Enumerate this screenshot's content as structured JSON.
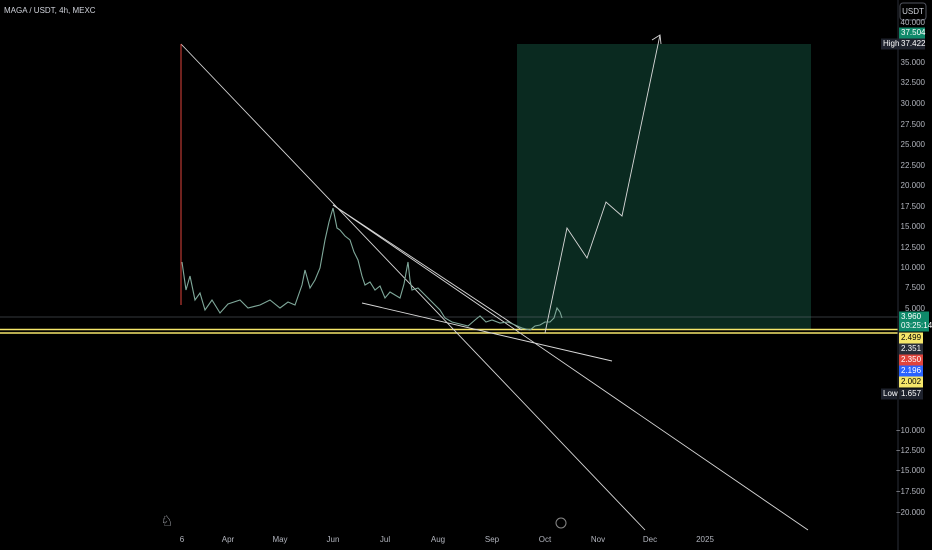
{
  "header": {
    "title": "MAGA / USDT, 4h, MEXC",
    "currency": "USDT"
  },
  "price_axis": {
    "labels": [
      "40.000",
      "35.000",
      "32.500",
      "30.000",
      "27.500",
      "25.000",
      "22.500",
      "20.000",
      "17.500",
      "15.000",
      "12.500",
      "10.000",
      "7.500",
      "5.000",
      "−10.000",
      "−12.500",
      "−15.000",
      "−17.500",
      "−20.000"
    ]
  },
  "badges": {
    "target": "37.504",
    "high_label": "High",
    "high": "37.422",
    "last": "3.960",
    "countdown": "03:25:14",
    "b1": "2.499",
    "b2": "2.351",
    "b3": "2.350",
    "b4": "2.196",
    "b5": "2.002",
    "low_label": "Low",
    "low": "1.657"
  },
  "time_axis": {
    "labels": [
      "6",
      "Apr",
      "May",
      "Jun",
      "Jul",
      "Aug",
      "Sep",
      "Oct",
      "Nov",
      "Dec",
      "2025"
    ]
  }
}
